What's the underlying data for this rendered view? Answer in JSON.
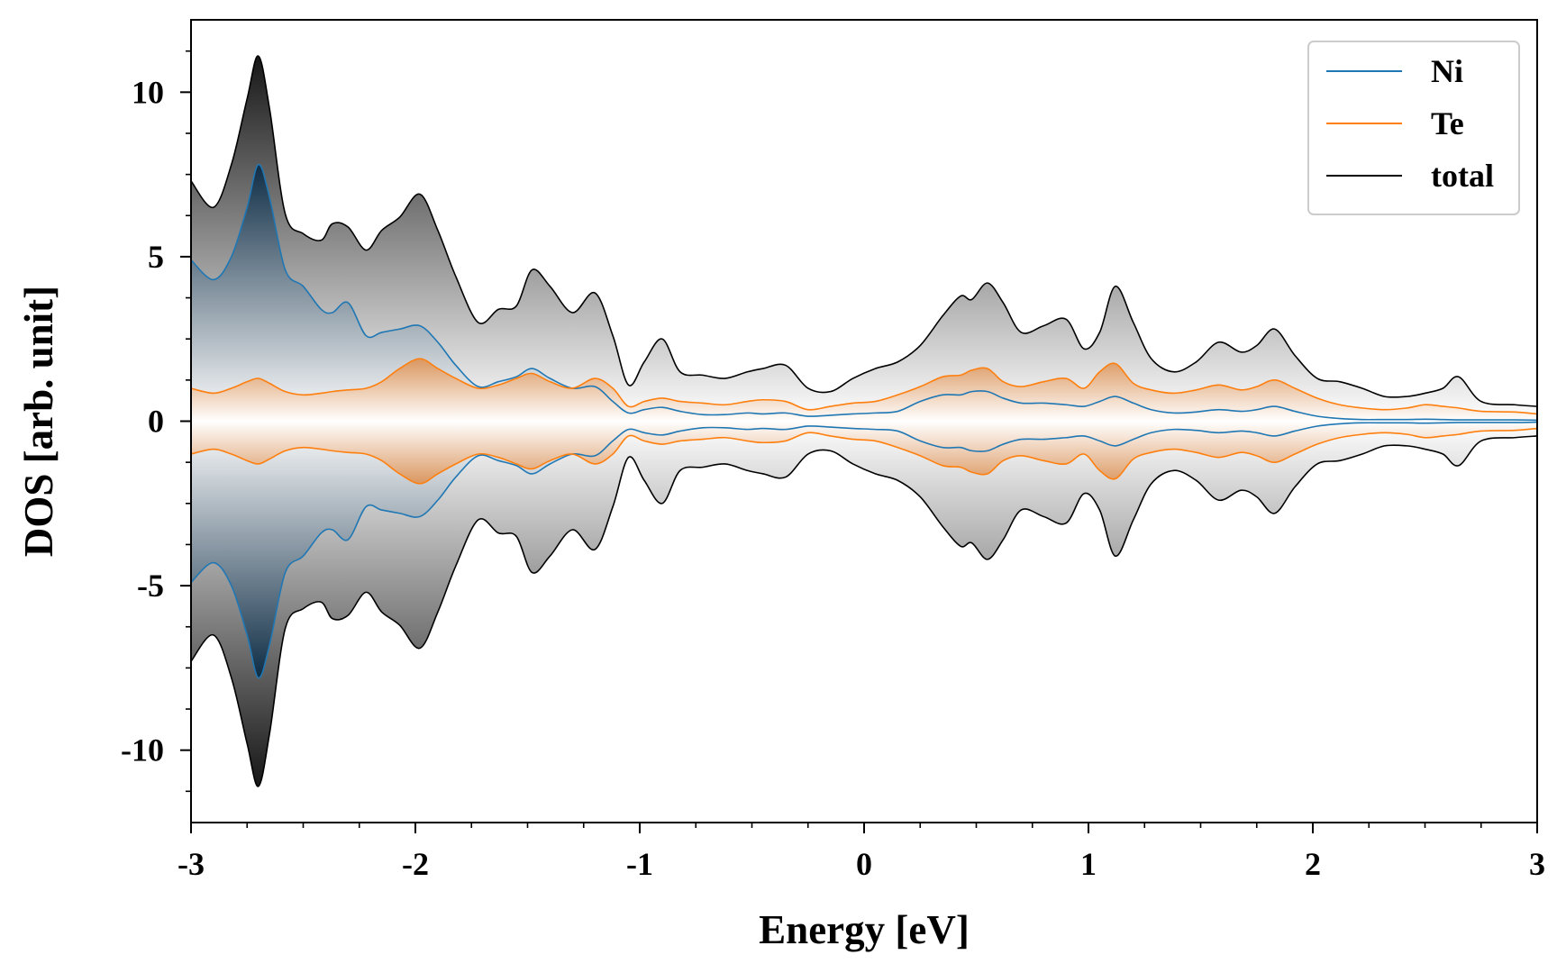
{
  "chart_data": {
    "type": "area",
    "title": "",
    "xlabel": "Energy [eV]",
    "ylabel": "DOS [arb. unit]",
    "xlim": [
      -3,
      3
    ],
    "ylim": [
      -12.2,
      12.2
    ],
    "xticks": [
      -3,
      -2,
      -1,
      0,
      1,
      2,
      3
    ],
    "xtick_labels": [
      "-3",
      "-2",
      "-1",
      "0",
      "1",
      "2",
      "3"
    ],
    "yticks": [
      -10,
      -5,
      0,
      5,
      10
    ],
    "ytick_labels": [
      "-10",
      "-5",
      "0",
      "5",
      "10"
    ],
    "grid": false,
    "legend_position": "top-right",
    "symmetric_mirror": true,
    "x": [
      -3.0,
      -2.9,
      -2.82,
      -2.75,
      -2.7,
      -2.65,
      -2.58,
      -2.5,
      -2.42,
      -2.37,
      -2.3,
      -2.22,
      -2.15,
      -2.07,
      -1.98,
      -1.9,
      -1.82,
      -1.72,
      -1.63,
      -1.55,
      -1.48,
      -1.4,
      -1.3,
      -1.2,
      -1.12,
      -1.05,
      -0.98,
      -0.9,
      -0.82,
      -0.72,
      -0.62,
      -0.52,
      -0.45,
      -0.35,
      -0.25,
      -0.15,
      -0.05,
      0.05,
      0.15,
      0.25,
      0.35,
      0.43,
      0.48,
      0.55,
      0.62,
      0.7,
      0.8,
      0.9,
      0.98,
      1.05,
      1.12,
      1.2,
      1.28,
      1.38,
      1.48,
      1.58,
      1.68,
      1.75,
      1.83,
      1.92,
      2.02,
      2.12,
      2.22,
      2.32,
      2.42,
      2.5,
      2.58,
      2.65,
      2.75,
      2.9,
      3.0
    ],
    "series": [
      {
        "name": "Ni",
        "color": "#1f77b4",
        "values": [
          4.9,
          4.3,
          5.0,
          6.5,
          7.8,
          6.8,
          4.6,
          4.1,
          3.4,
          3.3,
          3.6,
          2.6,
          2.7,
          2.8,
          2.9,
          2.4,
          1.7,
          1.05,
          1.2,
          1.35,
          1.6,
          1.3,
          1.0,
          1.05,
          0.6,
          0.25,
          0.35,
          0.42,
          0.3,
          0.2,
          0.2,
          0.25,
          0.22,
          0.25,
          0.15,
          0.18,
          0.22,
          0.25,
          0.3,
          0.6,
          0.8,
          0.8,
          0.9,
          0.9,
          0.7,
          0.55,
          0.55,
          0.5,
          0.45,
          0.6,
          0.75,
          0.55,
          0.35,
          0.25,
          0.28,
          0.35,
          0.3,
          0.35,
          0.45,
          0.3,
          0.15,
          0.08,
          0.05,
          0.05,
          0.05,
          0.06,
          0.05,
          0.04,
          0.04,
          0.04,
          0.03
        ]
      },
      {
        "name": "Te",
        "color": "#ff7f0e",
        "values": [
          1.0,
          0.85,
          1.0,
          1.2,
          1.3,
          1.15,
          0.9,
          0.8,
          0.85,
          0.9,
          0.95,
          1.0,
          1.2,
          1.6,
          1.9,
          1.6,
          1.3,
          1.0,
          1.1,
          1.3,
          1.45,
          1.2,
          1.0,
          1.3,
          1.0,
          0.45,
          0.6,
          0.7,
          0.6,
          0.55,
          0.5,
          0.6,
          0.65,
          0.6,
          0.35,
          0.45,
          0.55,
          0.6,
          0.8,
          1.05,
          1.35,
          1.4,
          1.55,
          1.6,
          1.2,
          1.05,
          1.2,
          1.3,
          1.0,
          1.5,
          1.75,
          1.15,
          0.95,
          0.85,
          0.95,
          1.1,
          0.95,
          1.05,
          1.25,
          1.0,
          0.7,
          0.5,
          0.4,
          0.35,
          0.4,
          0.5,
          0.45,
          0.4,
          0.3,
          0.28,
          0.22
        ]
      },
      {
        "name": "total",
        "color": "#000000",
        "values": [
          7.3,
          6.5,
          7.8,
          9.8,
          11.1,
          9.5,
          6.3,
          5.7,
          5.5,
          6.0,
          5.9,
          5.2,
          5.8,
          6.2,
          6.9,
          5.8,
          4.4,
          3.0,
          3.4,
          3.5,
          4.6,
          4.1,
          3.3,
          3.9,
          2.6,
          1.1,
          1.8,
          2.5,
          1.5,
          1.4,
          1.3,
          1.5,
          1.6,
          1.7,
          1.0,
          0.9,
          1.3,
          1.6,
          1.8,
          2.3,
          3.2,
          3.8,
          3.7,
          4.2,
          3.6,
          2.7,
          2.9,
          3.1,
          2.2,
          2.7,
          4.1,
          3.0,
          1.9,
          1.5,
          1.8,
          2.4,
          2.1,
          2.3,
          2.8,
          2.0,
          1.3,
          1.2,
          1.0,
          0.75,
          0.75,
          0.85,
          1.0,
          1.35,
          0.6,
          0.5,
          0.45
        ]
      }
    ]
  }
}
